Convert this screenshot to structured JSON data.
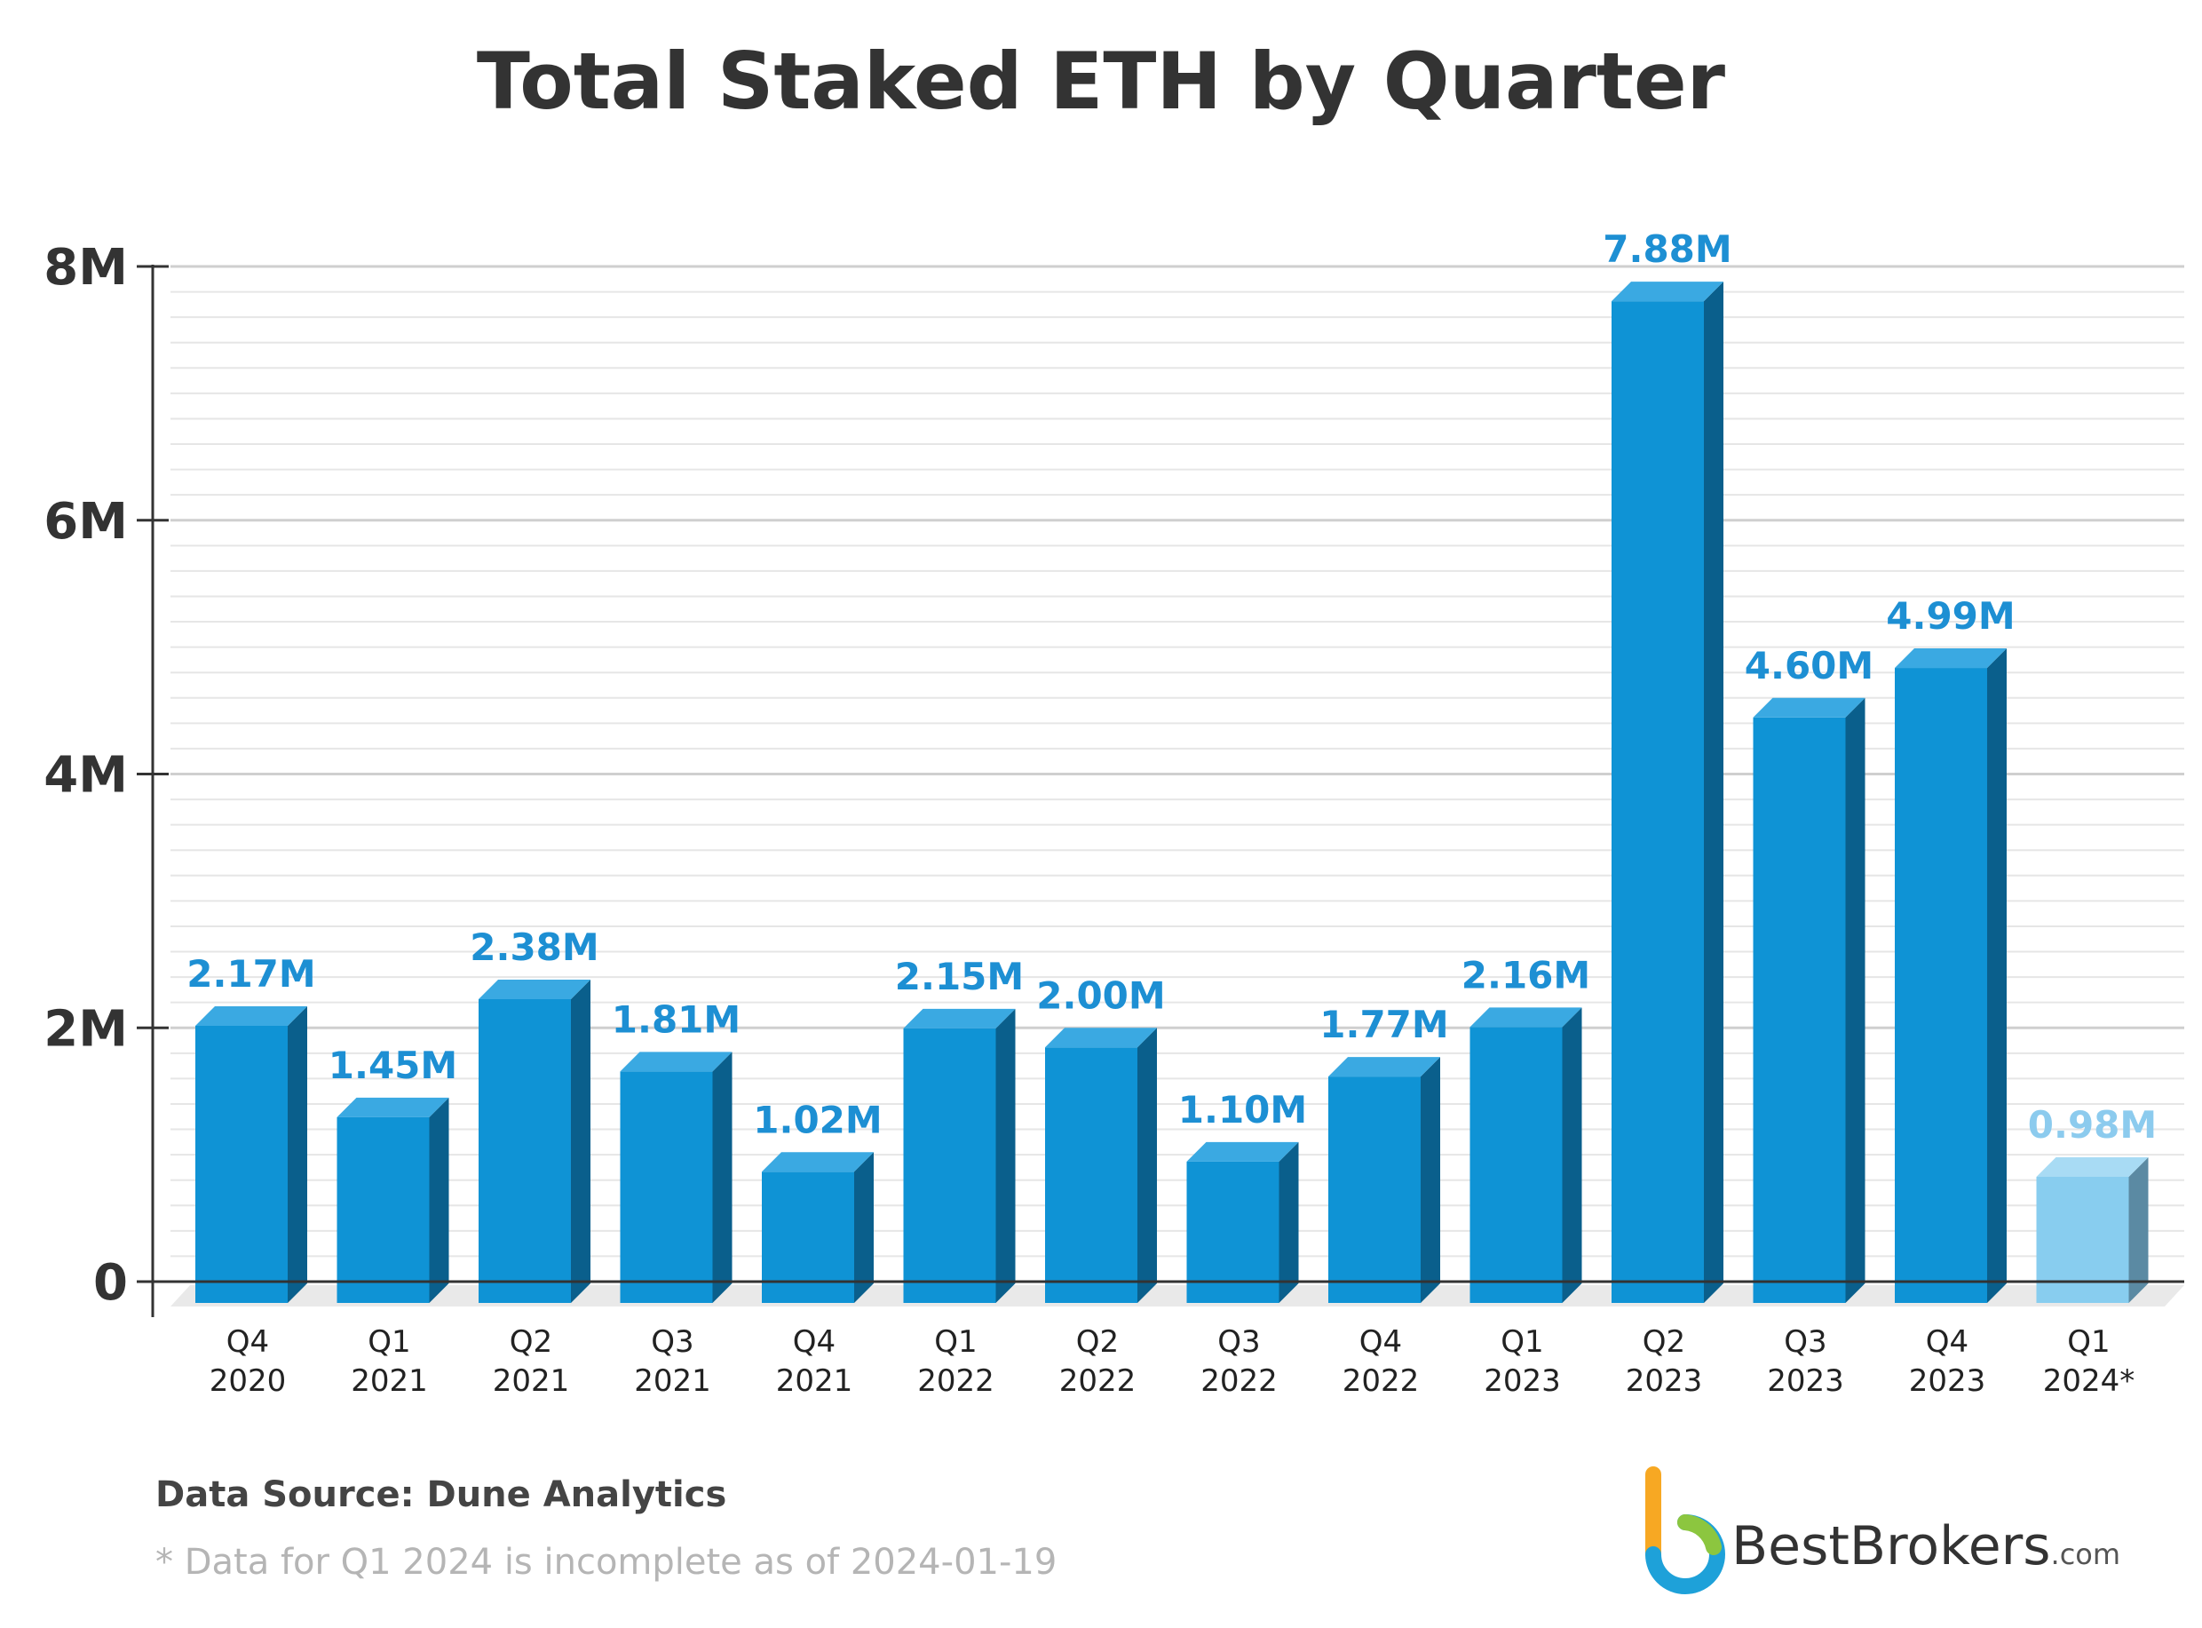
{
  "chart_data": {
    "type": "bar",
    "title": "Total Staked ETH by Quarter",
    "categories": [
      [
        "Q4",
        "2020"
      ],
      [
        "Q1",
        "2021"
      ],
      [
        "Q2",
        "2021"
      ],
      [
        "Q3",
        "2021"
      ],
      [
        "Q4",
        "2021"
      ],
      [
        "Q1",
        "2022"
      ],
      [
        "Q2",
        "2022"
      ],
      [
        "Q3",
        "2022"
      ],
      [
        "Q4",
        "2022"
      ],
      [
        "Q1",
        "2023"
      ],
      [
        "Q2",
        "2023"
      ],
      [
        "Q3",
        "2023"
      ],
      [
        "Q4",
        "2023"
      ],
      [
        "Q1",
        "2024*"
      ]
    ],
    "values": [
      2.17,
      1.45,
      2.38,
      1.81,
      1.02,
      2.15,
      2.0,
      1.1,
      1.77,
      2.16,
      7.88,
      4.6,
      4.99,
      0.98
    ],
    "value_labels": [
      "2.17M",
      "1.45M",
      "2.38M",
      "1.81M",
      "1.02M",
      "2.15M",
      "2.00M",
      "1.10M",
      "1.77M",
      "2.16M",
      "7.88M",
      "4.60M",
      "4.99M",
      "0.98M"
    ],
    "incomplete": [
      false,
      false,
      false,
      false,
      false,
      false,
      false,
      false,
      false,
      false,
      false,
      false,
      false,
      true
    ],
    "ylim": [
      0,
      8
    ],
    "yticks": [
      0,
      2,
      4,
      6,
      8
    ],
    "ytick_labels": [
      "0",
      "2M",
      "4M",
      "6M",
      "8M"
    ],
    "grid": true,
    "colors": {
      "bar_front": "#0f93d5",
      "bar_top": "#3aa9e2",
      "bar_side": "#0a5f8c",
      "bar_front_incomplete": "#88cdef",
      "bar_top_incomplete": "#a8dbf4",
      "bar_side_incomplete": "#5b8aa3",
      "value_label": "#1d8fd3",
      "value_label_incomplete": "#8ccbee",
      "grid_major": "#cfcfcf",
      "grid_minor": "#e6e6e6",
      "floor": "#e9e9e9"
    }
  },
  "footer": {
    "source": "Data Source: Dune Analytics",
    "footnote": "* Data for Q1 2024 is incomplete as of 2024-01-19"
  },
  "brand": {
    "name": "BestBrokers",
    "tld": ".com",
    "logo_icon": "bestbrokers-logo-icon"
  }
}
